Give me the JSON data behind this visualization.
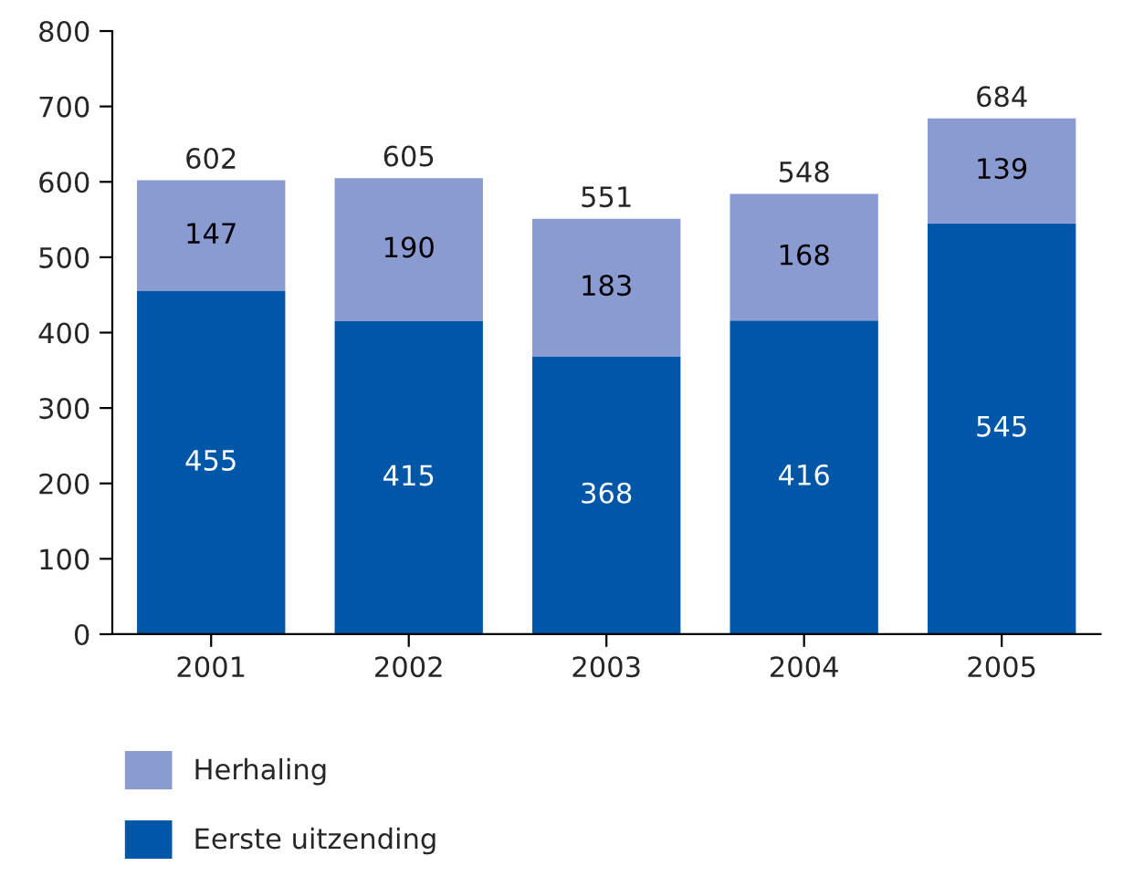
{
  "chart_data": {
    "type": "bar",
    "stacked": true,
    "categories": [
      "2001",
      "2002",
      "2003",
      "2004",
      "2005"
    ],
    "series": [
      {
        "name": "Eerste uitzending",
        "color": "#0057a8",
        "values": [
          455,
          415,
          368,
          416,
          545
        ]
      },
      {
        "name": "Herhaling",
        "color": "#8a9bd2",
        "values": [
          147,
          190,
          183,
          168,
          139
        ]
      }
    ],
    "annotations": [
      {
        "text": "602",
        "x": "2001",
        "y": 602
      },
      {
        "text": "605",
        "x": "2002",
        "y": 605
      },
      {
        "text": "551",
        "x": "2003",
        "y": 551
      },
      {
        "text": "548",
        "x": "2004",
        "y": 584
      },
      {
        "text": "684",
        "x": "2005",
        "y": 684
      }
    ],
    "ylim": [
      0,
      800
    ],
    "yticks": [
      0,
      100,
      200,
      300,
      400,
      500,
      600,
      700,
      800
    ],
    "data_labels": true,
    "grid": false,
    "legend": "bottom left"
  }
}
